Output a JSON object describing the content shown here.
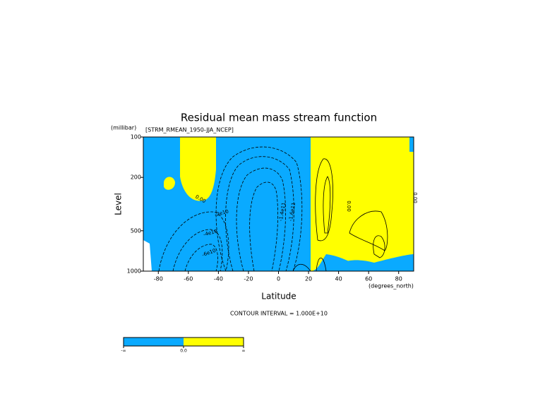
{
  "chart_data": {
    "type": "contour",
    "title": "Residual mean mass stream function",
    "subtitle": "[STRM_RMEAN_1950-JJA_NCEP]",
    "y_units": "(millibar)",
    "x_units": "(degrees_north)",
    "xlabel": "Latitude",
    "ylabel": "Level",
    "annotation": "CONTOUR INTERVAL = 1.000E+10",
    "xlim": [
      -90,
      90
    ],
    "xticks": [
      -80,
      -60,
      -40,
      -20,
      0,
      20,
      40,
      60,
      80
    ],
    "ylim": [
      1000,
      100
    ],
    "yticks": [
      1000,
      500,
      200,
      100
    ],
    "log_y": true,
    "negative_color": "#0aaaff",
    "positive_color": "#ffff00",
    "colorbar_labels": [
      "-∞",
      "0.0",
      "∞"
    ],
    "contour_labels": [
      "0.00",
      "-2e10",
      "-4e10",
      "-6e10",
      "-1.6e11",
      "-1.4e11",
      "0.00",
      "0.00"
    ]
  }
}
